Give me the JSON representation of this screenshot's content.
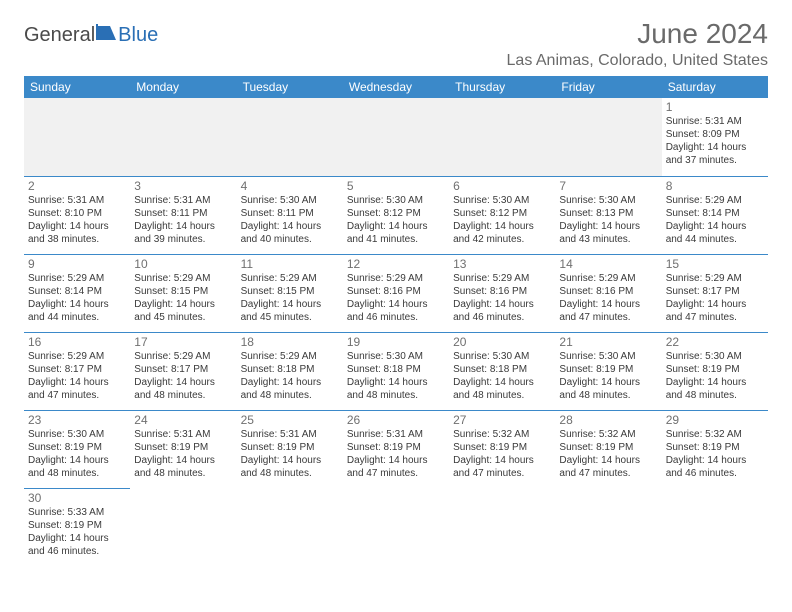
{
  "logo": {
    "w1": "General",
    "w2": "Blue"
  },
  "title": "June 2024",
  "location": "Las Animas, Colorado, United States",
  "colors": {
    "header_bg": "#3b89c9",
    "header_text": "#ffffff",
    "divider": "#3b89c9",
    "blank_bg": "#f1f1f1",
    "text": "#3a3a3a",
    "muted": "#6a6a6a"
  },
  "weekdays": [
    "Sunday",
    "Monday",
    "Tuesday",
    "Wednesday",
    "Thursday",
    "Friday",
    "Saturday"
  ],
  "first_weekday_index": 6,
  "days": [
    {
      "n": 1,
      "sr": "5:31 AM",
      "ss": "8:09 PM",
      "dl": "14",
      "dm": "37"
    },
    {
      "n": 2,
      "sr": "5:31 AM",
      "ss": "8:10 PM",
      "dl": "14",
      "dm": "38"
    },
    {
      "n": 3,
      "sr": "5:31 AM",
      "ss": "8:11 PM",
      "dl": "14",
      "dm": "39"
    },
    {
      "n": 4,
      "sr": "5:30 AM",
      "ss": "8:11 PM",
      "dl": "14",
      "dm": "40"
    },
    {
      "n": 5,
      "sr": "5:30 AM",
      "ss": "8:12 PM",
      "dl": "14",
      "dm": "41"
    },
    {
      "n": 6,
      "sr": "5:30 AM",
      "ss": "8:12 PM",
      "dl": "14",
      "dm": "42"
    },
    {
      "n": 7,
      "sr": "5:30 AM",
      "ss": "8:13 PM",
      "dl": "14",
      "dm": "43"
    },
    {
      "n": 8,
      "sr": "5:29 AM",
      "ss": "8:14 PM",
      "dl": "14",
      "dm": "44"
    },
    {
      "n": 9,
      "sr": "5:29 AM",
      "ss": "8:14 PM",
      "dl": "14",
      "dm": "44"
    },
    {
      "n": 10,
      "sr": "5:29 AM",
      "ss": "8:15 PM",
      "dl": "14",
      "dm": "45"
    },
    {
      "n": 11,
      "sr": "5:29 AM",
      "ss": "8:15 PM",
      "dl": "14",
      "dm": "45"
    },
    {
      "n": 12,
      "sr": "5:29 AM",
      "ss": "8:16 PM",
      "dl": "14",
      "dm": "46"
    },
    {
      "n": 13,
      "sr": "5:29 AM",
      "ss": "8:16 PM",
      "dl": "14",
      "dm": "46"
    },
    {
      "n": 14,
      "sr": "5:29 AM",
      "ss": "8:16 PM",
      "dl": "14",
      "dm": "47"
    },
    {
      "n": 15,
      "sr": "5:29 AM",
      "ss": "8:17 PM",
      "dl": "14",
      "dm": "47"
    },
    {
      "n": 16,
      "sr": "5:29 AM",
      "ss": "8:17 PM",
      "dl": "14",
      "dm": "47"
    },
    {
      "n": 17,
      "sr": "5:29 AM",
      "ss": "8:17 PM",
      "dl": "14",
      "dm": "48"
    },
    {
      "n": 18,
      "sr": "5:29 AM",
      "ss": "8:18 PM",
      "dl": "14",
      "dm": "48"
    },
    {
      "n": 19,
      "sr": "5:30 AM",
      "ss": "8:18 PM",
      "dl": "14",
      "dm": "48"
    },
    {
      "n": 20,
      "sr": "5:30 AM",
      "ss": "8:18 PM",
      "dl": "14",
      "dm": "48"
    },
    {
      "n": 21,
      "sr": "5:30 AM",
      "ss": "8:19 PM",
      "dl": "14",
      "dm": "48"
    },
    {
      "n": 22,
      "sr": "5:30 AM",
      "ss": "8:19 PM",
      "dl": "14",
      "dm": "48"
    },
    {
      "n": 23,
      "sr": "5:30 AM",
      "ss": "8:19 PM",
      "dl": "14",
      "dm": "48"
    },
    {
      "n": 24,
      "sr": "5:31 AM",
      "ss": "8:19 PM",
      "dl": "14",
      "dm": "48"
    },
    {
      "n": 25,
      "sr": "5:31 AM",
      "ss": "8:19 PM",
      "dl": "14",
      "dm": "48"
    },
    {
      "n": 26,
      "sr": "5:31 AM",
      "ss": "8:19 PM",
      "dl": "14",
      "dm": "47"
    },
    {
      "n": 27,
      "sr": "5:32 AM",
      "ss": "8:19 PM",
      "dl": "14",
      "dm": "47"
    },
    {
      "n": 28,
      "sr": "5:32 AM",
      "ss": "8:19 PM",
      "dl": "14",
      "dm": "47"
    },
    {
      "n": 29,
      "sr": "5:32 AM",
      "ss": "8:19 PM",
      "dl": "14",
      "dm": "46"
    },
    {
      "n": 30,
      "sr": "5:33 AM",
      "ss": "8:19 PM",
      "dl": "14",
      "dm": "46"
    }
  ]
}
